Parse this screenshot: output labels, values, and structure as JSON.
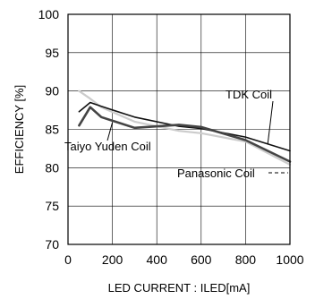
{
  "chart_data": {
    "type": "line",
    "xlabel": "LED CURRENT : ILED[mA]",
    "ylabel": "EFFICIENCY [%]",
    "xlim": [
      0,
      1000
    ],
    "ylim": [
      70,
      100
    ],
    "xticks": [
      "0",
      "200",
      "400",
      "600",
      "800",
      "1000"
    ],
    "yticks": [
      "70",
      "75",
      "80",
      "85",
      "90",
      "95",
      "100"
    ],
    "grid": true,
    "series": [
      {
        "name": "TDK Coil",
        "color": "#111111",
        "x": [
          50,
          100,
          150,
          300,
          500,
          600,
          800,
          1000
        ],
        "y": [
          87.3,
          88.5,
          88.0,
          86.6,
          85.4,
          85.1,
          84.0,
          82.2
        ]
      },
      {
        "name": "Taiyo Yuden Coil",
        "color": "#444444",
        "x": [
          50,
          100,
          150,
          300,
          500,
          600,
          800,
          1000
        ],
        "y": [
          85.5,
          87.9,
          86.6,
          85.2,
          85.6,
          85.3,
          83.6,
          80.8
        ]
      },
      {
        "name": "Panasonic Coil",
        "color": "#cccccc",
        "x": [
          50,
          100,
          150,
          300,
          500,
          600,
          800,
          1000
        ],
        "y": [
          90.0,
          89.0,
          87.9,
          86.0,
          84.8,
          84.5,
          83.4,
          80.4
        ]
      }
    ],
    "annotations": [
      {
        "text": "TDK Coil",
        "series": "TDK Coil"
      },
      {
        "text": "Taiyo Yuden Coil",
        "series": "Taiyo Yuden Coil"
      },
      {
        "text": "Panasonic Coil",
        "series": "Panasonic Coil"
      }
    ]
  }
}
